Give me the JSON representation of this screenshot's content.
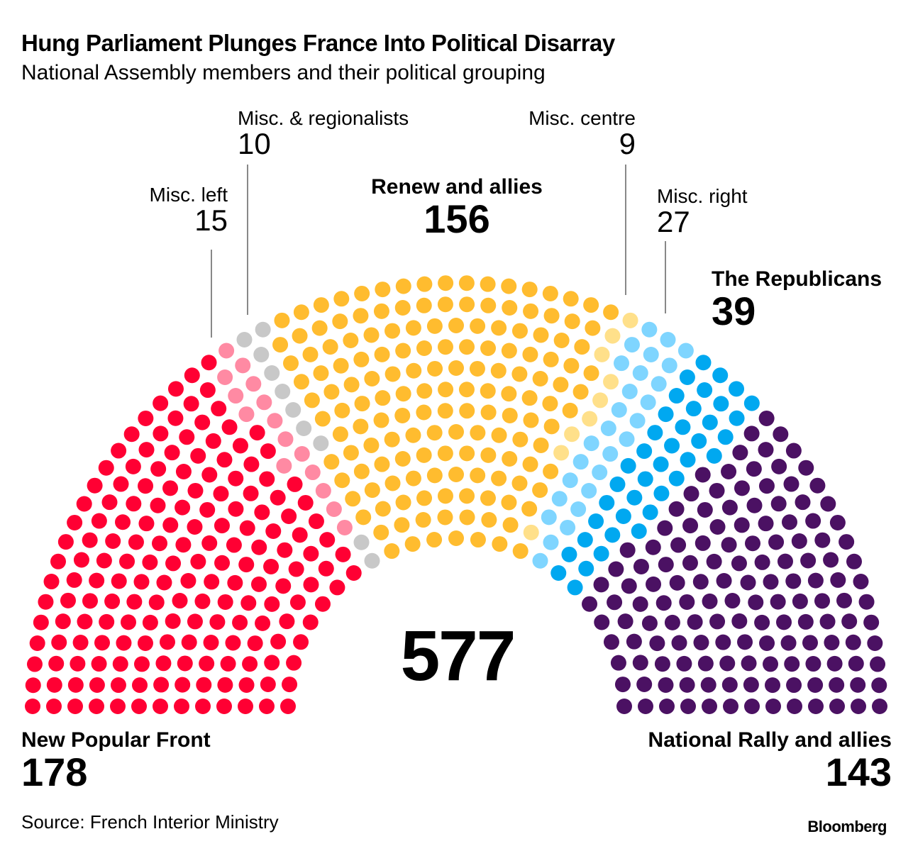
{
  "chart_data": {
    "type": "parliament",
    "title": "Hung Parliament Plunges France Into Political Disarray",
    "subtitle": "National Assembly members and their political grouping",
    "total": "577",
    "series": [
      {
        "name": "New Popular Front",
        "value": 178,
        "color": "#ff0033"
      },
      {
        "name": "Misc. left",
        "value": 15,
        "color": "#ff8aa3"
      },
      {
        "name": "Misc. & regionalists",
        "value": 10,
        "color": "#c8c8c8"
      },
      {
        "name": "Renew and allies",
        "value": 156,
        "color": "#ffbc2f"
      },
      {
        "name": "Misc. centre",
        "value": 9,
        "color": "#ffe08a"
      },
      {
        "name": "Misc. right",
        "value": 27,
        "color": "#7fd5ff"
      },
      {
        "name": "The Republicans",
        "value": 39,
        "color": "#00a8f0"
      },
      {
        "name": "National Rally and allies",
        "value": 143,
        "color": "#4b1163"
      }
    ],
    "source": "Source: French Interior Ministry",
    "brand": "Bloomberg"
  }
}
